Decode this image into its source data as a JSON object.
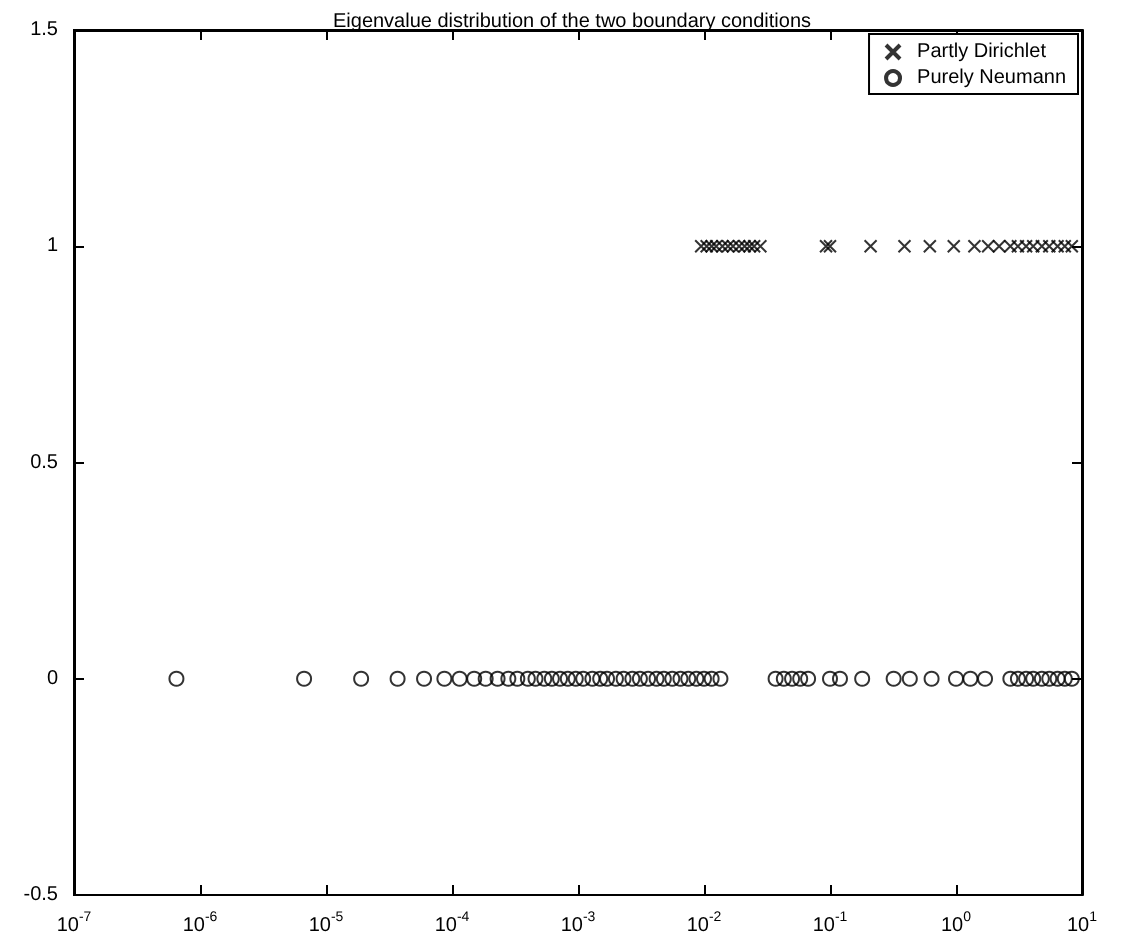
{
  "chart_data": {
    "type": "scatter",
    "title": "Eigenvalue distribution of the two boundary conditions",
    "series": [
      {
        "name": "Partly Dirichlet",
        "color": "#000000",
        "marker": "cross",
        "x": [
          0.0095,
          0.0105,
          0.0115,
          0.0125,
          0.014,
          0.0155,
          0.017,
          0.019,
          0.021,
          0.023,
          0.025,
          0.028,
          0.093,
          0.1,
          0.21,
          0.39,
          0.62,
          0.96,
          1.4,
          1.8,
          2.2,
          2.7,
          3.1,
          3.6,
          4.1,
          4.8,
          5.5,
          6.4,
          7.3,
          8.3
        ],
        "values": [
          1,
          1,
          1,
          1,
          1,
          1,
          1,
          1,
          1,
          1,
          1,
          1,
          1,
          1,
          1,
          1,
          1,
          1,
          1,
          1,
          1,
          1,
          1,
          1,
          1,
          1,
          1,
          1,
          1,
          1
        ]
      },
      {
        "name": "Purely Neumann",
        "color": "#000000",
        "marker": "circle",
        "x": [
          6.5e-07,
          6.7e-06,
          1.9e-05,
          3.7e-05,
          6e-05,
          8.7e-05,
          0.000115,
          0.00015,
          0.000185,
          0.00023,
          0.00028,
          0.00033,
          0.0004,
          0.00046,
          0.00054,
          0.00062,
          0.00072,
          0.00083,
          0.00096,
          0.0011,
          0.0013,
          0.0015,
          0.0017,
          0.002,
          0.0023,
          0.0027,
          0.0031,
          0.0036,
          0.0042,
          0.0048,
          0.0056,
          0.0065,
          0.0075,
          0.0087,
          0.01,
          0.0115,
          0.0135,
          0.037,
          0.043,
          0.05,
          0.058,
          0.067,
          0.1,
          0.12,
          0.18,
          0.32,
          0.43,
          0.64,
          1.0,
          1.3,
          1.7,
          2.7,
          3.1,
          3.6,
          4.1,
          4.8,
          5.5,
          6.4,
          7.3,
          8.3
        ],
        "values": [
          0,
          0,
          0,
          0,
          0,
          0,
          0,
          0,
          0,
          0,
          0,
          0,
          0,
          0,
          0,
          0,
          0,
          0,
          0,
          0,
          0,
          0,
          0,
          0,
          0,
          0,
          0,
          0,
          0,
          0,
          0,
          0,
          0,
          0,
          0,
          0,
          0,
          0,
          0,
          0,
          0,
          0,
          0,
          0,
          0,
          0,
          0,
          0,
          0,
          0,
          0,
          0,
          0,
          0,
          0,
          0,
          0,
          0,
          0,
          0
        ]
      }
    ],
    "log": "x",
    "xlim": [
      1e-07,
      10
    ],
    "xticks": [
      {
        "value": 1e-07,
        "label": "10$^{-7}$"
      },
      {
        "value": 1e-06,
        "label": "10$^{-6}$"
      },
      {
        "value": 1e-05,
        "label": "10$^{-5}$"
      },
      {
        "value": 0.0001,
        "label": "10$^{-4}$"
      },
      {
        "value": 0.001,
        "label": "10$^{-3}$"
      },
      {
        "value": 0.01,
        "label": "10$^{-2}$"
      },
      {
        "value": 0.1,
        "label": "10$^{-1}$"
      },
      {
        "value": 1,
        "label": "10$^{0}$"
      },
      {
        "value": 10,
        "label": "10$^{1}$"
      }
    ],
    "ylim": [
      -0.5,
      1.5
    ],
    "yticks": [
      -0.5,
      0,
      0.5,
      1,
      1.5
    ],
    "grid": false,
    "legend": "top right"
  }
}
